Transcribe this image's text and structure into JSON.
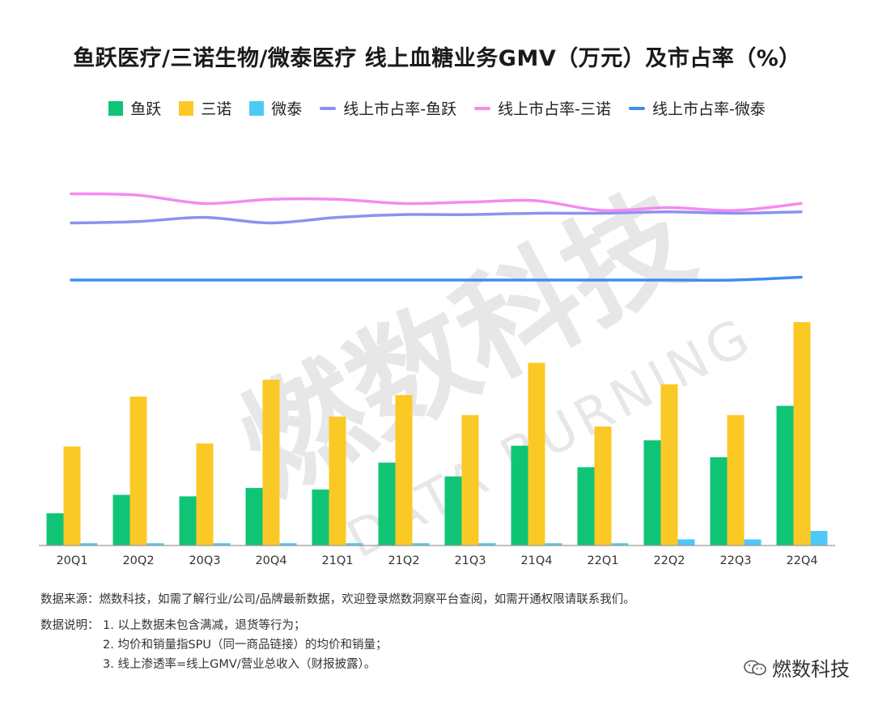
{
  "chart_data": {
    "type": "bar+line",
    "title": "鱼跃医疗/三诺生物/微泰医疗 线上血糖业务GMV（万元）及市占率（%）",
    "categories": [
      "20Q1",
      "20Q2",
      "20Q3",
      "20Q4",
      "21Q1",
      "21Q2",
      "21Q3",
      "21Q4",
      "22Q1",
      "22Q2",
      "22Q3",
      "22Q4"
    ],
    "bar_series": [
      {
        "name": "鱼跃",
        "color": "#10C476",
        "values": [
          42,
          66,
          64,
          75,
          73,
          108,
          90,
          130,
          102,
          137,
          115,
          182
        ]
      },
      {
        "name": "三诺",
        "color": "#FBC925",
        "values": [
          129,
          194,
          133,
          216,
          168,
          196,
          170,
          238,
          155,
          210,
          170,
          291
        ]
      },
      {
        "name": "微泰",
        "color": "#4DC9F6",
        "values": [
          3,
          3,
          3,
          3,
          3,
          3,
          3,
          3,
          3,
          8,
          8,
          19
        ]
      }
    ],
    "line_series": [
      {
        "name": "线上市占率-鱼跃",
        "color": "#8C92F0",
        "values": [
          41,
          42,
          45,
          41,
          45,
          47,
          47,
          48,
          48,
          49,
          48,
          49
        ]
      },
      {
        "name": "线上市占率-三诺",
        "color": "#F48AF0",
        "values": [
          62,
          61,
          55,
          58,
          58,
          55,
          56,
          57,
          50,
          52,
          50,
          55
        ]
      },
      {
        "name": "线上市占率-微泰",
        "color": "#3C8EF0",
        "values": [
          0,
          0,
          0,
          0,
          0,
          0,
          0,
          0,
          0,
          0,
          0,
          2
        ]
      }
    ],
    "xlabel": "",
    "ylabel": "",
    "bar_ylim": [
      0,
      310
    ],
    "line_ylim": [
      0,
      100
    ]
  },
  "footer": {
    "source": "数据来源：燃数科技，如需了解行业/公司/品牌最新数据，欢迎登录燃数洞察平台查阅，如需开通权限请联系我们。",
    "note_label": "数据说明：",
    "notes": [
      "1. 以上数据未包含满减，退货等行为；",
      "2. 均价和销量指SPU（同一商品链接）的均价和销量；",
      "3. 线上渗透率=线上GMV/营业总收入（财报披露）。"
    ]
  },
  "watermark": {
    "cn": "燃数科技",
    "en": "DATA BURNING",
    "brand": "燃数科技"
  }
}
